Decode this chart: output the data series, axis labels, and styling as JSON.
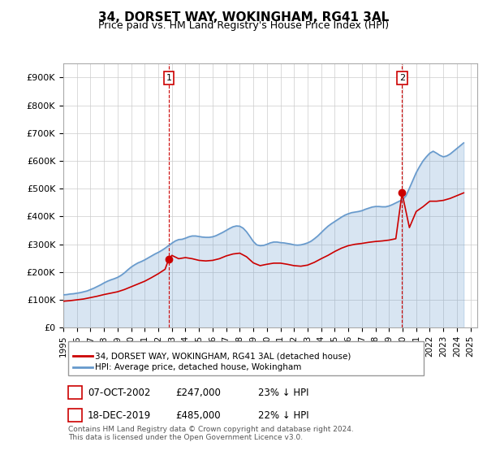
{
  "title": "34, DORSET WAY, WOKINGHAM, RG41 3AL",
  "subtitle": "Price paid vs. HM Land Registry's House Price Index (HPI)",
  "ylabel_ticks": [
    "£0",
    "£100K",
    "£200K",
    "£300K",
    "£400K",
    "£500K",
    "£600K",
    "£700K",
    "£800K",
    "£900K"
  ],
  "ytick_values": [
    0,
    100000,
    200000,
    300000,
    400000,
    500000,
    600000,
    700000,
    800000,
    900000
  ],
  "ylim": [
    0,
    950000
  ],
  "xlim_start": 1995.0,
  "xlim_end": 2025.5,
  "transaction1": {
    "label": "1",
    "date": "07-OCT-2002",
    "price": 247000,
    "x": 2002.77,
    "pct": "23%",
    "direction": "↓"
  },
  "transaction2": {
    "label": "2",
    "date": "18-DEC-2019",
    "price": 485000,
    "x": 2019.96,
    "pct": "22%",
    "direction": "↓"
  },
  "legend_entry1": "34, DORSET WAY, WOKINGHAM, RG41 3AL (detached house)",
  "legend_entry2": "HPI: Average price, detached house, Wokingham",
  "footer": "Contains HM Land Registry data © Crown copyright and database right 2024.\nThis data is licensed under the Open Government Licence v3.0.",
  "red_color": "#cc0000",
  "blue_color": "#6699cc",
  "marker_box_color": "#cc0000",
  "background_color": "#ffffff",
  "grid_color": "#cccccc",
  "hpi_years": [
    1995.0,
    1995.25,
    1995.5,
    1995.75,
    1996.0,
    1996.25,
    1996.5,
    1996.75,
    1997.0,
    1997.25,
    1997.5,
    1997.75,
    1998.0,
    1998.25,
    1998.5,
    1998.75,
    1999.0,
    1999.25,
    1999.5,
    1999.75,
    2000.0,
    2000.25,
    2000.5,
    2000.75,
    2001.0,
    2001.25,
    2001.5,
    2001.75,
    2002.0,
    2002.25,
    2002.5,
    2002.75,
    2003.0,
    2003.25,
    2003.5,
    2003.75,
    2004.0,
    2004.25,
    2004.5,
    2004.75,
    2005.0,
    2005.25,
    2005.5,
    2005.75,
    2006.0,
    2006.25,
    2006.5,
    2006.75,
    2007.0,
    2007.25,
    2007.5,
    2007.75,
    2008.0,
    2008.25,
    2008.5,
    2008.75,
    2009.0,
    2009.25,
    2009.5,
    2009.75,
    2010.0,
    2010.25,
    2010.5,
    2010.75,
    2011.0,
    2011.25,
    2011.5,
    2011.75,
    2012.0,
    2012.25,
    2012.5,
    2012.75,
    2013.0,
    2013.25,
    2013.5,
    2013.75,
    2014.0,
    2014.25,
    2014.5,
    2014.75,
    2015.0,
    2015.25,
    2015.5,
    2015.75,
    2016.0,
    2016.25,
    2016.5,
    2016.75,
    2017.0,
    2017.25,
    2017.5,
    2017.75,
    2018.0,
    2018.25,
    2018.5,
    2018.75,
    2019.0,
    2019.25,
    2019.5,
    2019.75,
    2020.0,
    2020.25,
    2020.5,
    2020.75,
    2021.0,
    2021.25,
    2021.5,
    2021.75,
    2022.0,
    2022.25,
    2022.5,
    2022.75,
    2023.0,
    2023.25,
    2023.5,
    2023.75,
    2024.0,
    2024.25,
    2024.5
  ],
  "hpi_values": [
    118000,
    119000,
    121000,
    122000,
    124000,
    126000,
    129000,
    132000,
    137000,
    142000,
    148000,
    154000,
    161000,
    167000,
    172000,
    176000,
    181000,
    188000,
    197000,
    208000,
    218000,
    226000,
    233000,
    238000,
    244000,
    251000,
    258000,
    265000,
    271000,
    278000,
    286000,
    295000,
    304000,
    312000,
    317000,
    318000,
    322000,
    327000,
    330000,
    330000,
    328000,
    326000,
    325000,
    325000,
    327000,
    331000,
    337000,
    343000,
    350000,
    357000,
    363000,
    366000,
    365000,
    358000,
    345000,
    328000,
    310000,
    298000,
    295000,
    296000,
    300000,
    305000,
    308000,
    308000,
    306000,
    305000,
    303000,
    301000,
    298000,
    297000,
    298000,
    301000,
    305000,
    311000,
    320000,
    330000,
    342000,
    354000,
    365000,
    374000,
    382000,
    390000,
    398000,
    405000,
    410000,
    414000,
    416000,
    418000,
    421000,
    426000,
    430000,
    434000,
    436000,
    436000,
    435000,
    435000,
    438000,
    443000,
    449000,
    455000,
    461000,
    475000,
    502000,
    530000,
    558000,
    580000,
    600000,
    615000,
    628000,
    635000,
    628000,
    620000,
    615000,
    618000,
    625000,
    635000,
    645000,
    655000,
    665000
  ],
  "red_years": [
    1995.0,
    1995.5,
    1996.0,
    1996.5,
    1997.0,
    1997.5,
    1998.0,
    1998.5,
    1999.0,
    1999.5,
    2000.0,
    2000.5,
    2001.0,
    2001.5,
    2002.0,
    2002.5,
    2002.77,
    2003.0,
    2003.5,
    2004.0,
    2004.5,
    2005.0,
    2005.5,
    2006.0,
    2006.5,
    2007.0,
    2007.5,
    2008.0,
    2008.5,
    2009.0,
    2009.5,
    2010.0,
    2010.5,
    2011.0,
    2011.5,
    2012.0,
    2012.5,
    2013.0,
    2013.5,
    2014.0,
    2014.5,
    2015.0,
    2015.5,
    2016.0,
    2016.5,
    2017.0,
    2017.5,
    2018.0,
    2018.5,
    2019.0,
    2019.5,
    2019.96,
    2020.0,
    2020.5,
    2021.0,
    2021.5,
    2022.0,
    2022.5,
    2023.0,
    2023.5,
    2024.0,
    2024.5
  ],
  "red_values": [
    95000,
    97000,
    100000,
    103000,
    108000,
    113000,
    119000,
    124000,
    129000,
    137000,
    147000,
    157000,
    167000,
    180000,
    194000,
    210000,
    247000,
    260000,
    248000,
    252000,
    248000,
    242000,
    240000,
    242000,
    248000,
    258000,
    265000,
    268000,
    255000,
    233000,
    223000,
    228000,
    232000,
    232000,
    228000,
    223000,
    221000,
    225000,
    235000,
    248000,
    260000,
    274000,
    286000,
    295000,
    300000,
    303000,
    307000,
    310000,
    312000,
    315000,
    320000,
    485000,
    475000,
    360000,
    418000,
    435000,
    455000,
    455000,
    458000,
    465000,
    475000,
    485000
  ]
}
